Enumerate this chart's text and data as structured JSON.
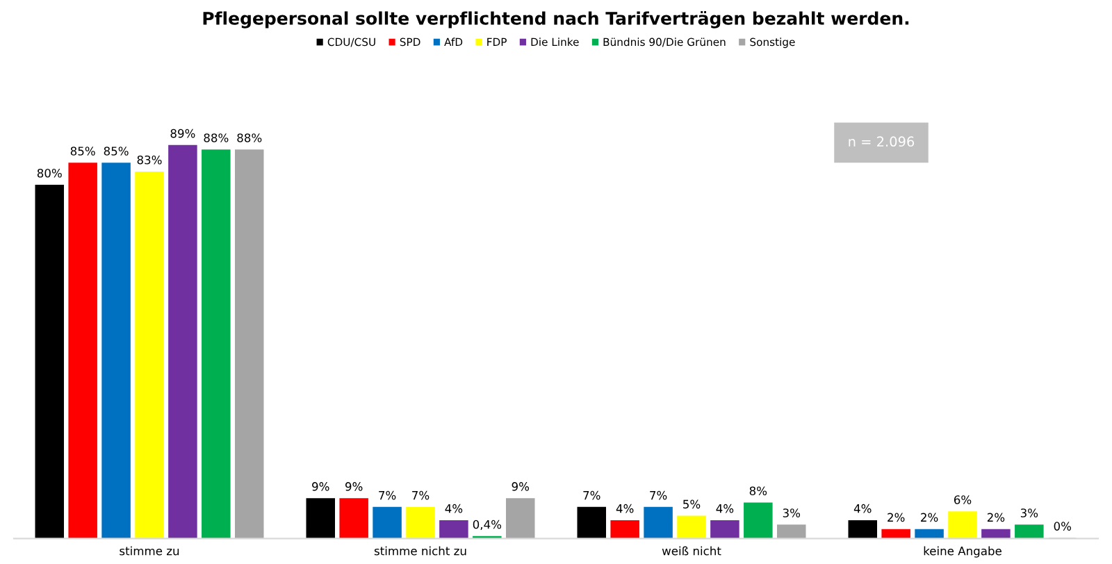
{
  "chart_data": {
    "type": "bar",
    "title": "Pflegepersonal sollte verpflichtend nach Tarifverträgen bezahlt werden.",
    "categories": [
      "stimme zu",
      "stimme nicht zu",
      "weiß nicht",
      "keine Angabe"
    ],
    "series": [
      {
        "name": "CDU/CSU",
        "color": "#000000",
        "values": [
          80,
          9,
          7,
          4
        ],
        "value_labels": [
          "80%",
          "9%",
          "7%",
          "4%"
        ]
      },
      {
        "name": "SPD",
        "color": "#ff0000",
        "values": [
          85,
          9,
          4,
          2
        ],
        "value_labels": [
          "85%",
          "9%",
          "4%",
          "2%"
        ]
      },
      {
        "name": "AfD",
        "color": "#0070c0",
        "values": [
          85,
          7,
          7,
          2
        ],
        "value_labels": [
          "85%",
          "7%",
          "7%",
          "2%"
        ]
      },
      {
        "name": "FDP",
        "color": "#ffff00",
        "values": [
          83,
          7,
          5,
          6
        ],
        "value_labels": [
          "83%",
          "7%",
          "5%",
          "6%"
        ]
      },
      {
        "name": "Die Linke",
        "color": "#7030a0",
        "values": [
          89,
          4,
          4,
          2
        ],
        "value_labels": [
          "89%",
          "4%",
          "4%",
          "2%"
        ]
      },
      {
        "name": "Bündnis 90/Die Grünen",
        "color": "#00b050",
        "values": [
          88,
          0.4,
          8,
          3
        ],
        "value_labels": [
          "88%",
          "0,4%",
          "8%",
          "3%"
        ]
      },
      {
        "name": "Sonstige",
        "color": "#a5a5a5",
        "values": [
          88,
          9,
          3,
          0
        ],
        "value_labels": [
          "88%",
          "9%",
          "3%",
          "0%"
        ]
      }
    ],
    "annotations": [
      "n = 2.096"
    ],
    "legend": "top",
    "grid": false
  }
}
